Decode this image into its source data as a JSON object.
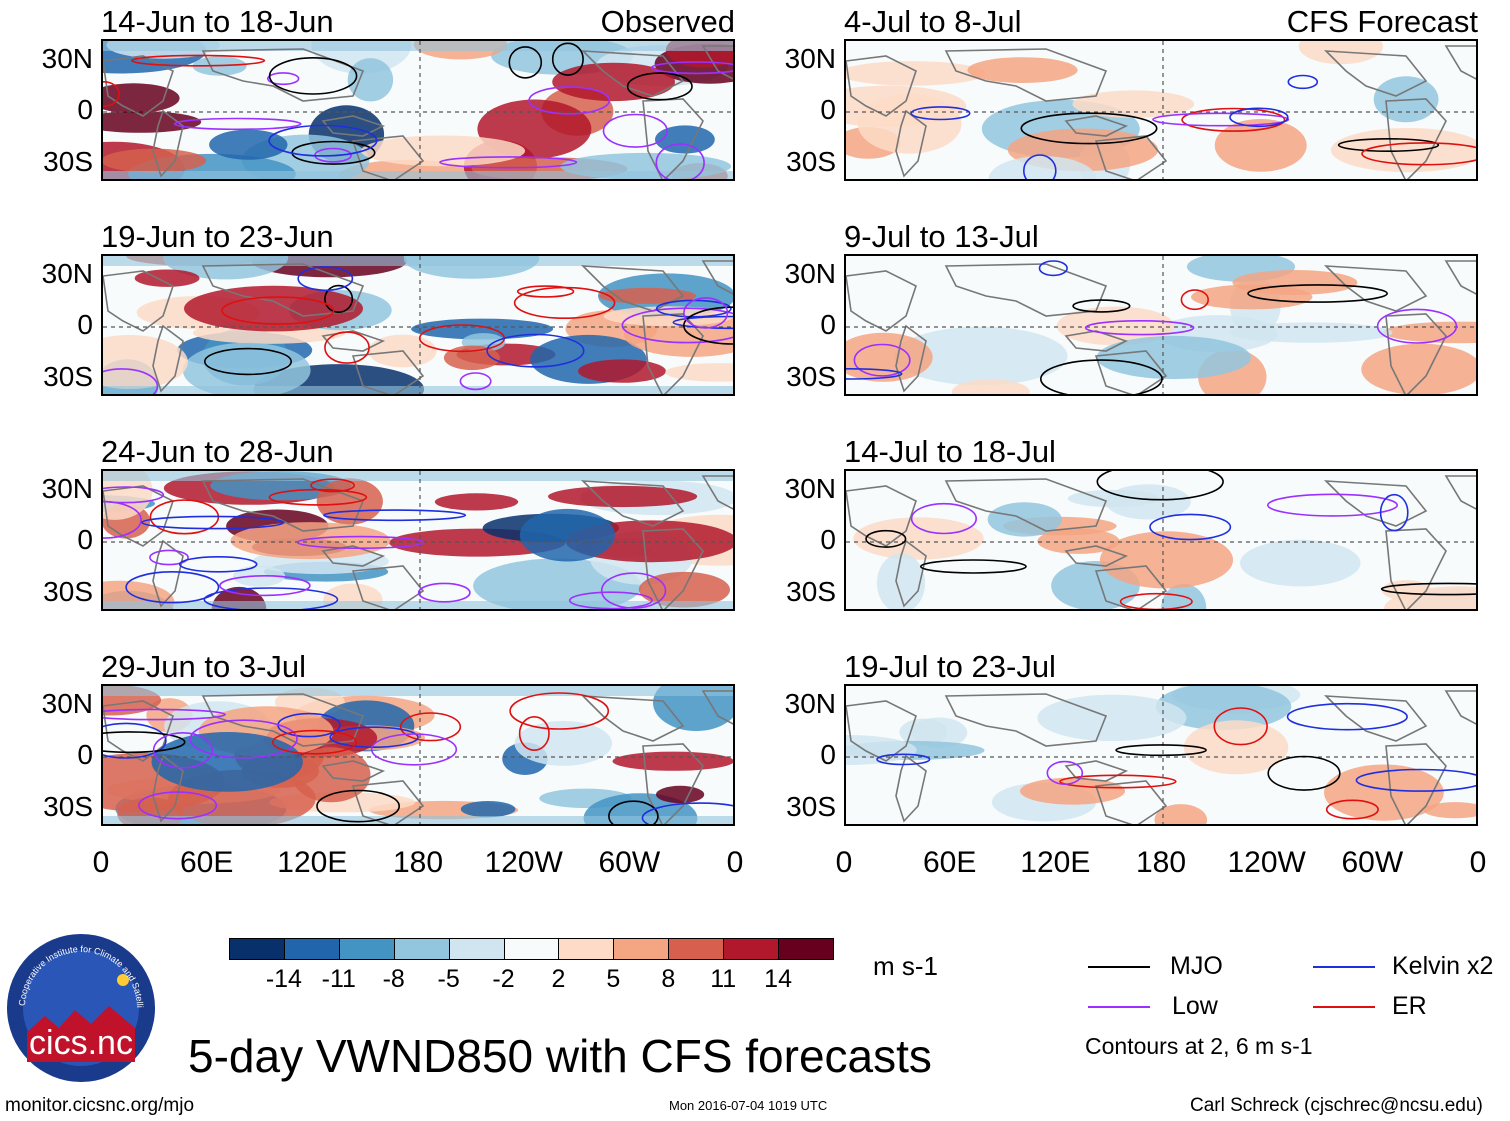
{
  "observed_tag": "Observed",
  "forecast_tag": "CFS Forecast",
  "panels_left": [
    {
      "title": "14-Jun to 18-Jun"
    },
    {
      "title": "19-Jun to 23-Jun"
    },
    {
      "title": "24-Jun to 28-Jun"
    },
    {
      "title": "29-Jun to 3-Jul"
    }
  ],
  "panels_right": [
    {
      "title": "4-Jul to 8-Jul"
    },
    {
      "title": "9-Jul to 13-Jul"
    },
    {
      "title": "14-Jul to 18-Jul"
    },
    {
      "title": "19-Jul to 23-Jul"
    }
  ],
  "lat_labels": [
    "30N",
    "0",
    "30S"
  ],
  "lon_labels": [
    "0",
    "60E",
    "120E",
    "180",
    "120W",
    "60W",
    "0"
  ],
  "colorbar": {
    "colors": [
      "#08306b",
      "#2166ac",
      "#4393c3",
      "#92c5de",
      "#d1e5f0",
      "#f7fbfc",
      "#fddbc7",
      "#f4a582",
      "#d6604d",
      "#b2182b",
      "#67001f"
    ],
    "ticks": [
      "-14",
      "-11",
      "-8",
      "-5",
      "-2",
      "2",
      "5",
      "8",
      "11",
      "14"
    ],
    "unit": "m s-1"
  },
  "legend": {
    "mjo": {
      "label": "MJO",
      "color": "#000000"
    },
    "kelvin": {
      "label": "Kelvin x2",
      "color": "#1f2fe0"
    },
    "low": {
      "label": "Low",
      "color": "#9b30ff"
    },
    "er": {
      "label": "ER",
      "color": "#e01010"
    },
    "contours_note": "Contours at 2, 6 m s-1"
  },
  "logo": {
    "text": "cics.nc",
    "ring_text": "Cooperative Institute for Climate and Satellites"
  },
  "main_title": "5-day VWND850 with CFS forecasts",
  "footer": {
    "left": "monitor.cicsnc.org/mjo",
    "center": "Mon 2016-07-04 1019 UTC",
    "right": "Carl Schreck (cjschrec@ncsu.edu)"
  },
  "chart_data": {
    "type": "heatmap",
    "variable": "VWND850 anomaly (5-day mean)",
    "units": "m s-1",
    "lon_range": [
      0,
      360
    ],
    "lat_range": [
      -40,
      40
    ],
    "contour_levels": [
      2,
      6
    ],
    "contour_series": [
      "MJO",
      "Kelvin x2",
      "Low",
      "ER"
    ]
  }
}
